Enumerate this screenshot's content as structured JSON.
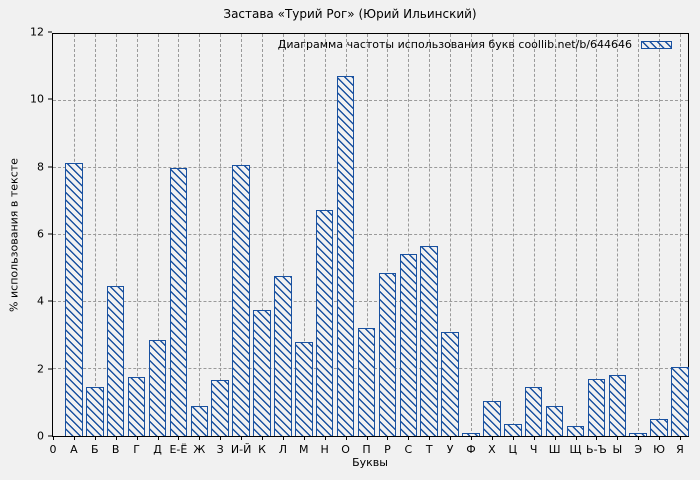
{
  "chart_data": {
    "type": "bar",
    "title": "Застава «Турий Рог» (Юрий Ильинский)",
    "legend": "Диаграмма частоты использования букв coollib.net/b/644646",
    "legend_position": "top-right",
    "xlabel": "Буквы",
    "ylabel": "% использования в тексте",
    "x_origin_label": "0",
    "categories": [
      "А",
      "Б",
      "В",
      "Г",
      "Д",
      "Е-Ё",
      "Ж",
      "З",
      "И-Й",
      "К",
      "Л",
      "М",
      "Н",
      "О",
      "П",
      "Р",
      "С",
      "Т",
      "У",
      "Ф",
      "Х",
      "Ц",
      "Ч",
      "Ш",
      "Щ",
      "Ь-Ъ",
      "Ы",
      "Э",
      "Ю",
      "Я"
    ],
    "values": [
      8.1,
      1.45,
      4.45,
      1.75,
      2.85,
      7.95,
      0.9,
      1.65,
      8.05,
      3.75,
      4.75,
      2.8,
      6.7,
      10.7,
      3.2,
      4.85,
      5.4,
      5.65,
      3.1,
      0.1,
      1.05,
      0.35,
      1.45,
      0.9,
      0.3,
      1.7,
      1.8,
      0.1,
      0.5,
      2.05
    ],
    "ylim": [
      0,
      12
    ],
    "yticks": [
      0,
      2,
      4,
      6,
      8,
      10,
      12
    ],
    "grid": true,
    "hatch": "diagonal-backslash",
    "colors": {
      "bar": "#1951a0",
      "grid": "#9a9a9a",
      "background": "#f1f1f1",
      "axis": "#000000",
      "text": "#000000"
    }
  }
}
